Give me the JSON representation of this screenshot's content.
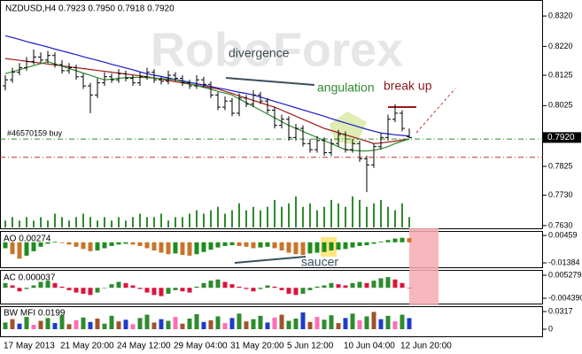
{
  "chart_data": [
    {
      "type": "candlestick",
      "title": "NZDUSD,H4 0.7923 0.7950 0.7918 0.7920",
      "watermark": "RoboForex",
      "categories": [
        "17 May 2013",
        null,
        null,
        null,
        null,
        null,
        null,
        null,
        "21 May 20:00",
        null,
        null,
        null,
        null,
        null,
        null,
        null,
        "24 May 12:00",
        null,
        null,
        null,
        null,
        null,
        null,
        null,
        "29 May 04:00",
        null,
        null,
        null,
        null,
        null,
        null,
        null,
        "31 May 20:00",
        null,
        null,
        null,
        null,
        null,
        null,
        null,
        "5 Jun 12:00",
        null,
        null,
        null,
        null,
        null,
        null,
        null,
        "10 Jun 04:00",
        null,
        null,
        null,
        null,
        null,
        null,
        null,
        "12 Jun 20:00",
        null
      ],
      "open": [
        0.809,
        0.811,
        0.8135,
        0.815,
        0.817,
        0.8185,
        0.8175,
        0.819,
        0.816,
        0.814,
        0.815,
        0.812,
        0.809,
        0.806,
        0.81,
        0.812,
        0.811,
        0.813,
        0.8115,
        0.81,
        0.812,
        0.8135,
        0.811,
        0.8105,
        0.8125,
        0.8115,
        0.81,
        0.809,
        0.811,
        0.8095,
        0.806,
        0.802,
        0.804,
        0.8,
        0.805,
        0.803,
        0.806,
        0.804,
        0.801,
        0.796,
        0.798,
        0.792,
        0.795,
        0.79,
        0.788,
        0.791,
        0.787,
        0.79,
        0.793,
        0.788,
        0.79,
        0.785,
        0.783,
        0.789,
        0.792,
        0.798,
        0.8,
        0.7923
      ],
      "high": [
        0.8125,
        0.815,
        0.8165,
        0.8185,
        0.821,
        0.82,
        0.8205,
        0.82,
        0.8175,
        0.8165,
        0.816,
        0.813,
        0.81,
        0.8115,
        0.8135,
        0.813,
        0.8145,
        0.814,
        0.8125,
        0.8135,
        0.815,
        0.8145,
        0.812,
        0.814,
        0.8135,
        0.8125,
        0.811,
        0.8125,
        0.812,
        0.8105,
        0.807,
        0.8055,
        0.805,
        0.8065,
        0.806,
        0.8075,
        0.807,
        0.805,
        0.802,
        0.7995,
        0.799,
        0.7965,
        0.796,
        0.7915,
        0.7925,
        0.792,
        0.7915,
        0.7945,
        0.794,
        0.7915,
        0.791,
        0.786,
        0.79,
        0.7935,
        0.7995,
        0.803,
        0.801,
        0.795
      ],
      "low": [
        0.8075,
        0.81,
        0.8125,
        0.814,
        0.816,
        0.8165,
        0.8165,
        0.815,
        0.813,
        0.813,
        0.811,
        0.808,
        0.8,
        0.805,
        0.809,
        0.81,
        0.81,
        0.8105,
        0.809,
        0.809,
        0.811,
        0.81,
        0.8095,
        0.8095,
        0.8105,
        0.809,
        0.808,
        0.808,
        0.8085,
        0.805,
        0.801,
        0.801,
        0.799,
        0.799,
        0.802,
        0.802,
        0.803,
        0.8,
        0.795,
        0.795,
        0.791,
        0.791,
        0.789,
        0.787,
        0.787,
        0.786,
        0.786,
        0.789,
        0.787,
        0.787,
        0.784,
        0.774,
        0.782,
        0.788,
        0.791,
        0.797,
        0.794,
        0.7918
      ],
      "close": [
        0.811,
        0.8135,
        0.815,
        0.817,
        0.8185,
        0.8175,
        0.819,
        0.816,
        0.814,
        0.815,
        0.812,
        0.809,
        0.806,
        0.81,
        0.812,
        0.811,
        0.813,
        0.8115,
        0.81,
        0.812,
        0.8135,
        0.811,
        0.8105,
        0.8125,
        0.8115,
        0.81,
        0.809,
        0.811,
        0.8095,
        0.806,
        0.802,
        0.804,
        0.8,
        0.805,
        0.803,
        0.806,
        0.804,
        0.801,
        0.796,
        0.798,
        0.792,
        0.795,
        0.79,
        0.788,
        0.791,
        0.787,
        0.79,
        0.793,
        0.788,
        0.79,
        0.785,
        0.783,
        0.789,
        0.792,
        0.798,
        0.8,
        0.795,
        0.792
      ],
      "color": "#000000",
      "series": [
        {
          "color": "#1a1ac8",
          "values": [
            0.8255,
            0.8249,
            0.8243,
            0.8236,
            0.823,
            0.8224,
            0.8218,
            0.8211,
            0.8205,
            0.8199,
            0.8193,
            0.8186,
            0.818,
            0.8174,
            0.8168,
            0.8161,
            0.8155,
            0.8149,
            0.8143,
            0.8136,
            0.813,
            0.8125,
            0.8121,
            0.8116,
            0.8111,
            0.8107,
            0.8102,
            0.8097,
            0.8093,
            0.8088,
            0.8083,
            0.8079,
            0.8074,
            0.8069,
            0.8065,
            0.806,
            0.8053,
            0.8046,
            0.8039,
            0.8032,
            0.8025,
            0.8018,
            0.8011,
            0.8004,
            0.7997,
            0.799,
            0.7982,
            0.7975,
            0.7968,
            0.7961,
            0.7954,
            0.7947,
            0.7941,
            0.7935,
            0.7932,
            0.7929,
            0.7927,
            0.7925
          ]
        },
        {
          "color": "#a01818",
          "values": [
            0.818,
            0.8177,
            0.8174,
            0.8171,
            0.8168,
            0.8165,
            0.8162,
            0.8159,
            0.8156,
            0.8153,
            0.815,
            0.8147,
            0.8144,
            0.8141,
            0.8138,
            0.8135,
            0.8132,
            0.8129,
            0.8126,
            0.8123,
            0.812,
            0.8116,
            0.8112,
            0.8108,
            0.8104,
            0.81,
            0.8096,
            0.8092,
            0.8088,
            0.8084,
            0.808,
            0.8072,
            0.8065,
            0.8057,
            0.805,
            0.8042,
            0.8035,
            0.8027,
            0.802,
            0.801,
            0.8,
            0.799,
            0.798,
            0.797,
            0.796,
            0.795,
            0.7943,
            0.7936,
            0.7929,
            0.7922,
            0.7915,
            0.7908,
            0.79,
            0.7902,
            0.7905,
            0.7908,
            0.7912,
            0.7915
          ]
        },
        {
          "color": "#2e8b2e",
          "values": [
            0.813,
            0.8137,
            0.8143,
            0.815,
            0.8157,
            0.8163,
            0.817,
            0.8162,
            0.8155,
            0.8147,
            0.814,
            0.8132,
            0.8125,
            0.8117,
            0.811,
            0.8112,
            0.8115,
            0.8117,
            0.8118,
            0.8118,
            0.8117,
            0.8116,
            0.8114,
            0.8112,
            0.811,
            0.8104,
            0.8097,
            0.8091,
            0.8085,
            0.8079,
            0.8072,
            0.8066,
            0.806,
            0.8047,
            0.8035,
            0.8022,
            0.801,
            0.7997,
            0.7985,
            0.7972,
            0.796,
            0.795,
            0.794,
            0.793,
            0.792,
            0.791,
            0.79,
            0.789,
            0.788,
            0.7878,
            0.7876,
            0.7876,
            0.7878,
            0.7883,
            0.789,
            0.79,
            0.7908,
            0.7915
          ]
        }
      ],
      "volume": [
        2,
        3,
        2,
        3,
        2,
        3,
        2,
        4,
        3,
        2,
        3,
        4,
        3,
        2,
        3,
        2,
        3,
        2,
        3,
        4,
        3,
        3,
        4,
        2,
        3,
        3,
        4,
        5,
        4,
        5,
        6,
        4,
        5,
        7,
        5,
        6,
        5,
        6,
        8,
        6,
        7,
        9,
        6,
        7,
        5,
        6,
        8,
        7,
        6,
        9,
        8,
        6,
        7,
        8,
        6,
        5,
        7,
        3
      ],
      "volume_color": "#2e8b2e",
      "ylim": [
        0.7621,
        0.8364
      ],
      "yticks": [
        {
          "value": 0.832,
          "label": "0.8320"
        },
        {
          "value": 0.822,
          "label": "0.8220"
        },
        {
          "value": 0.8125,
          "label": "0.8125"
        },
        {
          "value": 0.8025,
          "label": "0.8025"
        },
        {
          "value": 0.7825,
          "label": "0.7825"
        },
        {
          "value": 0.773,
          "label": "0.7730"
        },
        {
          "value": 0.763,
          "label": "0.7630"
        }
      ],
      "price_marker": {
        "value": 0.792,
        "label": "0.7920"
      },
      "order_line": {
        "value": 0.7915,
        "label": "#46570159 buy",
        "color": "#2e8b2e"
      },
      "stop_line": {
        "value": 0.7855,
        "color": "#c03030"
      },
      "annotations": [
        "divergence",
        "angulation",
        "break up"
      ]
    },
    {
      "type": "bar",
      "title": "AO 0.00274",
      "values": [
        -0.004,
        -0.008,
        -0.011,
        -0.009,
        -0.006,
        -0.003,
        -0.001,
        0.0005,
        -0.0005,
        -0.0015,
        -0.003,
        -0.0045,
        -0.006,
        -0.0055,
        -0.004,
        -0.0025,
        -0.0015,
        -0.001,
        -0.0015,
        -0.0025,
        -0.004,
        -0.0055,
        -0.007,
        -0.008,
        -0.0075,
        -0.0085,
        -0.009,
        -0.008,
        -0.0065,
        -0.005,
        -0.0035,
        -0.0025,
        -0.002,
        -0.0025,
        -0.003,
        -0.004,
        -0.0035,
        -0.003,
        -0.004,
        -0.0055,
        -0.007,
        -0.008,
        -0.0085,
        -0.0075,
        -0.007,
        -0.0065,
        -0.0055,
        -0.005,
        -0.0045,
        -0.0035,
        -0.0025,
        -0.002,
        -0.001,
        0.0005,
        0.0015,
        0.0025,
        0.003,
        0.00274
      ],
      "up_color": "#1e8c1e",
      "down_color": "#c8742a",
      "ylim": [
        -0.0168,
        0.0076
      ],
      "yticks": [
        {
          "value": 0.00459,
          "label": "0.00459"
        },
        {
          "value": -0.01384,
          "label": "-0.01384"
        }
      ],
      "annotations": [
        "saucer"
      ]
    },
    {
      "type": "bar",
      "title": "AC 0.000037",
      "values": [
        0.002,
        0.001,
        -0.0015,
        -0.0005,
        0.001,
        0.0025,
        0.003,
        0.002,
        0.0005,
        -0.001,
        -0.002,
        -0.0025,
        -0.003,
        -0.002,
        0.0,
        0.0015,
        0.0025,
        0.002,
        0.001,
        -0.0005,
        -0.002,
        -0.003,
        -0.0035,
        -0.0025,
        -0.001,
        -0.0015,
        -0.002,
        0.0005,
        0.002,
        0.003,
        0.0035,
        0.0025,
        0.0015,
        0.0005,
        -0.0005,
        -0.0015,
        -0.0005,
        0.001,
        0.0005,
        -0.001,
        -0.0025,
        -0.003,
        -0.0025,
        -0.001,
        0.0005,
        0.001,
        0.002,
        0.0015,
        0.001,
        0.002,
        0.0025,
        0.002,
        0.003,
        0.004,
        0.0045,
        0.0035,
        0.002,
        3.7e-05
      ],
      "up_color": "#2e8b2e",
      "down_color": "#dc143c",
      "ylim": [
        -0.00662,
        0.00751
      ],
      "yticks": [
        {
          "value": 0.005279,
          "label": "0.005279"
        },
        {
          "value": -0.00439,
          "label": "-0.004390"
        }
      ]
    },
    {
      "type": "bar",
      "title": "BW MFI 0.0199",
      "values": [
        0.012,
        0.018,
        0.01,
        0.022,
        0.008,
        0.015,
        0.02,
        0.011,
        0.025,
        0.009,
        0.016,
        0.021,
        0.013,
        0.019,
        0.01,
        0.024,
        0.014,
        0.017,
        0.009,
        0.02,
        0.026,
        0.012,
        0.018,
        0.015,
        0.022,
        0.01,
        0.019,
        0.027,
        0.013,
        0.016,
        0.023,
        0.011,
        0.02,
        0.028,
        0.014,
        0.018,
        0.024,
        0.012,
        0.021,
        0.026,
        0.015,
        0.019,
        0.03,
        0.013,
        0.022,
        0.017,
        0.025,
        0.011,
        0.02,
        0.028,
        0.016,
        0.023,
        0.031,
        0.018,
        0.024,
        0.014,
        0.026,
        0.0199
      ],
      "colors": [
        "#2e8b2e",
        "#a0522d",
        "#1e3cc8",
        "#2e8b2e",
        "#ff6eb4",
        "#a0522d",
        "#2e8b2e",
        "#1e3cc8",
        "#2e8b2e",
        "#a0522d",
        "#ff6eb4",
        "#2e8b2e",
        "#1e3cc8",
        "#a0522d",
        "#2e8b2e",
        "#2e8b2e",
        "#a0522d",
        "#1e3cc8",
        "#ff6eb4",
        "#2e8b2e",
        "#2e8b2e",
        "#a0522d",
        "#1e3cc8",
        "#2e8b2e",
        "#ff6eb4",
        "#a0522d",
        "#2e8b2e",
        "#2e8b2e",
        "#1e3cc8",
        "#a0522d",
        "#2e8b2e",
        "#ff6eb4",
        "#1e3cc8",
        "#2e8b2e",
        "#a0522d",
        "#2e8b2e",
        "#2e8b2e",
        "#1e3cc8",
        "#ff6eb4",
        "#a0522d",
        "#2e8b2e",
        "#2e8b2e",
        "#1e3cc8",
        "#a0522d",
        "#ff6eb4",
        "#2e8b2e",
        "#2e8b2e",
        "#a0522d",
        "#1e3cc8",
        "#2e8b2e",
        "#ff6eb4",
        "#2e8b2e",
        "#a0522d",
        "#1e3cc8",
        "#2e8b2e",
        "#ff6eb4",
        "#2e8b2e",
        "#1e3cc8"
      ],
      "ylim": [
        -0.0127,
        0.0412
      ],
      "yticks": [
        {
          "value": 0.0317,
          "label": "0.0317"
        },
        0
      ]
    }
  ]
}
